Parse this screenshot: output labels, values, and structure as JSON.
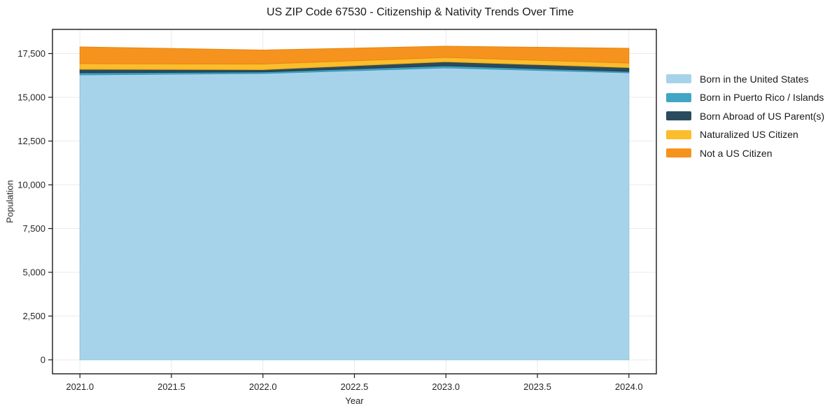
{
  "chart_data": {
    "type": "area",
    "stacked": true,
    "title": "US ZIP Code 67530 - Citizenship & Nativity Trends Over Time",
    "xlabel": "Year",
    "ylabel": "Population",
    "x": [
      2021,
      2022,
      2023,
      2024
    ],
    "series": [
      {
        "name": "Born in the United States",
        "color": "#A7D3EA",
        "edge": "#8FC3DF",
        "values": [
          16280,
          16360,
          16680,
          16400
        ]
      },
      {
        "name": "Born in Puerto Rico / Islands",
        "color": "#41A5C5",
        "edge": "#3694B4",
        "values": [
          120,
          90,
          120,
          80
        ]
      },
      {
        "name": "Born Abroad of US Parent(s)",
        "color": "#2A4B5D",
        "edge": "#223E4D",
        "values": [
          200,
          130,
          230,
          220
        ]
      },
      {
        "name": "Naturalized US Citizen",
        "color": "#FBBD2C",
        "edge": "#EDAB15",
        "values": [
          320,
          320,
          250,
          260
        ]
      },
      {
        "name": "Not a US Citizen",
        "color": "#F6931E",
        "edge": "#E8850F",
        "values": [
          960,
          800,
          640,
          840
        ]
      }
    ],
    "xlim": [
      2020.85,
      2024.15
    ],
    "ylim": [
      -800,
      18880
    ],
    "xticks": [
      {
        "v": 2021.0,
        "label": "2021.0"
      },
      {
        "v": 2021.5,
        "label": "2021.5"
      },
      {
        "v": 2022.0,
        "label": "2022.0"
      },
      {
        "v": 2022.5,
        "label": "2022.5"
      },
      {
        "v": 2023.0,
        "label": "2023.0"
      },
      {
        "v": 2023.5,
        "label": "2023.5"
      },
      {
        "v": 2024.0,
        "label": "2024.0"
      }
    ],
    "yticks": [
      {
        "v": 0,
        "label": "0"
      },
      {
        "v": 2500,
        "label": "2,500"
      },
      {
        "v": 5000,
        "label": "5,000"
      },
      {
        "v": 7500,
        "label": "7,500"
      },
      {
        "v": 10000,
        "label": "10,000"
      },
      {
        "v": 12500,
        "label": "12,500"
      },
      {
        "v": 15000,
        "label": "15,000"
      },
      {
        "v": 17500,
        "label": "17,500"
      }
    ],
    "grid": true,
    "legend_position": "right-outside"
  },
  "colors": {
    "grid": "#eaeaea",
    "spine": "#1a1a1a",
    "tick_text": "#262626",
    "background": "#ffffff"
  }
}
